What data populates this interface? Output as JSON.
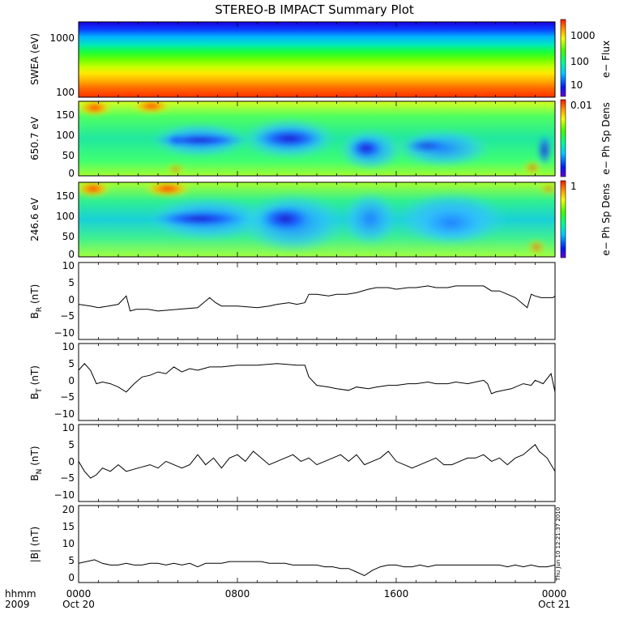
{
  "title": "STEREO-B IMPACT Summary Plot",
  "timestamp": "Thu Jun 10 12:21:37 2010",
  "x_axis": {
    "corner_labels": [
      "hhmm",
      "2009"
    ],
    "tick_labels": [
      {
        "time": "0000",
        "date": "Oct 20"
      },
      {
        "time": "0800",
        "date": ""
      },
      {
        "time": "1600",
        "date": ""
      },
      {
        "time": "0000",
        "date": "Oct 21"
      }
    ],
    "range_hours": [
      0,
      24
    ]
  },
  "chart_data": [
    {
      "type": "heatmap",
      "panel": "swea",
      "ylabel": "SWEA (eV)",
      "yscale": "log",
      "ylim": [
        100,
        1800
      ],
      "ytick_labels": [
        "1000",
        "100"
      ],
      "colorbar": {
        "label": "e− Flux",
        "scale": "log",
        "tick_labels": [
          "1000",
          "100",
          "10"
        ]
      }
    },
    {
      "type": "heatmap",
      "panel": "pad650",
      "ylabel": "650.7 eV",
      "ylim": [
        0,
        180
      ],
      "ytick_labels": [
        "150",
        "100",
        "50",
        "0"
      ],
      "colorbar": {
        "label": "e− Ph Sp Dens",
        "tick_labels": [
          "0.01"
        ]
      }
    },
    {
      "type": "heatmap",
      "panel": "pad246",
      "ylabel": "246.6 eV",
      "ylim": [
        0,
        180
      ],
      "ytick_labels": [
        "150",
        "100",
        "50",
        "0"
      ],
      "colorbar": {
        "label": "e− Ph Sp Dens",
        "tick_labels": [
          "1"
        ]
      }
    },
    {
      "type": "line",
      "panel": "br",
      "ylabel": "B",
      "ylabel_sub": "R",
      "ylabel_unit": "(nT)",
      "ylim": [
        -12,
        11
      ],
      "ytick_labels": [
        "10",
        "5",
        "0",
        "−5",
        "−10"
      ],
      "x": [
        0,
        0.6,
        1.0,
        1.5,
        2.0,
        2.4,
        2.6,
        2.9,
        3.5,
        4.0,
        5.0,
        6.0,
        6.6,
        6.9,
        7.2,
        8.0,
        9.0,
        9.6,
        10.0,
        10.6,
        11.0,
        11.4,
        11.6,
        12.0,
        12.6,
        13.0,
        13.5,
        14.0,
        14.6,
        15.0,
        15.6,
        16.0,
        16.6,
        17.0,
        17.6,
        18.0,
        18.6,
        19.0,
        19.6,
        20.0,
        20.4,
        20.8,
        21.2,
        21.6,
        22.0,
        22.4,
        22.6,
        22.8,
        23.0,
        23.3,
        23.6,
        23.9,
        24.0
      ],
      "values": [
        -1.5,
        -2,
        -2.5,
        -2,
        -1.5,
        1,
        -3.5,
        -3,
        -3,
        -3.5,
        -3,
        -2.5,
        0.5,
        -1,
        -2,
        -2,
        -2.5,
        -2,
        -1.5,
        -1,
        -1.5,
        -1,
        1.5,
        1.5,
        1,
        1.5,
        1.5,
        2,
        3,
        3.5,
        3.5,
        3,
        3.5,
        3.5,
        4,
        3.5,
        3.5,
        4,
        4,
        4,
        4,
        2.5,
        2.5,
        1.5,
        0.5,
        -1.5,
        -2.5,
        1.5,
        1,
        0.5,
        0.5,
        0.5,
        1
      ]
    },
    {
      "type": "line",
      "panel": "bt",
      "ylabel": "B",
      "ylabel_sub": "T",
      "ylabel_unit": "(nT)",
      "ylim": [
        -12,
        11
      ],
      "ytick_labels": [
        "10",
        "5",
        "0",
        "−5",
        "−10"
      ],
      "x": [
        0,
        0.3,
        0.6,
        0.9,
        1.2,
        1.6,
        2.0,
        2.4,
        2.8,
        3.2,
        3.6,
        4.0,
        4.4,
        4.8,
        5.2,
        5.6,
        6.0,
        6.6,
        7.2,
        8.0,
        9.0,
        10.0,
        11.0,
        11.4,
        11.6,
        12.0,
        12.6,
        13.0,
        13.6,
        14.0,
        14.6,
        15.0,
        15.6,
        16.0,
        16.6,
        17.0,
        17.6,
        18.0,
        18.6,
        19.0,
        19.6,
        20.0,
        20.4,
        20.6,
        20.8,
        21.0,
        21.4,
        21.8,
        22.0,
        22.4,
        22.8,
        23.0,
        23.4,
        23.8,
        24.0
      ],
      "values": [
        3,
        5,
        3,
        -1,
        -0.5,
        -1,
        -2,
        -3.5,
        -1,
        1,
        1.5,
        2.5,
        2,
        4,
        2.5,
        3.5,
        3,
        4,
        4,
        4.5,
        4.5,
        5,
        4.5,
        4.5,
        1,
        -1.5,
        -2,
        -2.5,
        -3,
        -2,
        -2.5,
        -2,
        -1.5,
        -1.5,
        -1,
        -1,
        -0.5,
        -1,
        -1,
        -0.5,
        -1,
        -0.5,
        0,
        -1,
        -4,
        -3.5,
        -3,
        -2.5,
        -2,
        -1,
        -1.5,
        0,
        -1,
        2,
        -3.5
      ]
    },
    {
      "type": "line",
      "panel": "bn",
      "ylabel": "B",
      "ylabel_sub": "N",
      "ylabel_unit": "(nT)",
      "ylim": [
        -12,
        11
      ],
      "ytick_labels": [
        "10",
        "5",
        "0",
        "−5",
        "−10"
      ],
      "x": [
        0,
        0.3,
        0.6,
        0.9,
        1.2,
        1.6,
        2.0,
        2.4,
        3.0,
        3.6,
        4.0,
        4.4,
        4.8,
        5.2,
        5.6,
        6.0,
        6.4,
        6.8,
        7.2,
        7.6,
        8.0,
        8.4,
        8.8,
        9.2,
        9.6,
        10.0,
        10.4,
        10.8,
        11.2,
        11.6,
        12.0,
        12.4,
        12.8,
        13.2,
        13.6,
        14.0,
        14.4,
        14.8,
        15.2,
        15.6,
        16.0,
        16.4,
        16.8,
        17.2,
        17.6,
        18.0,
        18.4,
        18.8,
        19.2,
        19.6,
        20.0,
        20.4,
        20.8,
        21.2,
        21.6,
        22.0,
        22.4,
        22.8,
        23.0,
        23.2,
        23.6,
        24.0
      ],
      "values": [
        0,
        -3,
        -5,
        -4,
        -2,
        -3,
        -1,
        -3,
        -2,
        -1,
        -2,
        0,
        -1,
        -2,
        -1,
        2,
        -1,
        1,
        -2,
        1,
        2,
        0,
        3,
        1,
        -1,
        0,
        1,
        2,
        0,
        1,
        -1,
        0,
        1,
        2,
        0,
        2,
        -1,
        0,
        1,
        3,
        0,
        -1,
        -2,
        -1,
        0,
        1,
        -1,
        -1,
        0,
        1,
        1,
        2,
        0,
        1,
        -1,
        1,
        2,
        4,
        5,
        3,
        1,
        -3
      ]
    },
    {
      "type": "line",
      "panel": "bmag",
      "ylabel": "|B| (nT)",
      "ylim": [
        -1,
        21
      ],
      "ytick_labels": [
        "20",
        "15",
        "10",
        "5",
        "0"
      ],
      "x": [
        0,
        0.4,
        0.8,
        1.2,
        1.6,
        2.0,
        2.4,
        2.8,
        3.2,
        3.6,
        4.0,
        4.4,
        4.8,
        5.2,
        5.6,
        6.0,
        6.4,
        6.8,
        7.2,
        7.6,
        8.0,
        8.4,
        8.8,
        9.2,
        9.6,
        10.0,
        10.4,
        10.8,
        11.2,
        11.6,
        12.0,
        12.4,
        12.8,
        13.2,
        13.6,
        14.0,
        14.4,
        14.8,
        15.2,
        15.6,
        16.0,
        16.4,
        16.8,
        17.2,
        17.6,
        18.0,
        18.4,
        18.8,
        19.2,
        19.6,
        20.0,
        20.4,
        20.8,
        21.2,
        21.6,
        22.0,
        22.4,
        22.8,
        23.2,
        23.6,
        24.0
      ],
      "values": [
        4.5,
        5,
        5.5,
        4.5,
        4,
        4,
        4.5,
        4,
        4,
        4.5,
        4.5,
        4,
        4.5,
        4,
        4.5,
        3.5,
        4.5,
        4.5,
        4.5,
        5,
        5,
        5,
        5,
        5,
        4.5,
        4.5,
        4.5,
        4,
        4,
        4,
        4,
        3.5,
        3.5,
        3,
        3,
        2,
        1,
        2.5,
        3.5,
        4,
        4,
        3.5,
        3.5,
        4,
        3.5,
        4,
        4,
        4,
        4,
        4,
        4,
        4,
        4,
        4,
        3.5,
        4,
        3.5,
        4,
        3.5,
        3.5,
        4
      ]
    }
  ]
}
